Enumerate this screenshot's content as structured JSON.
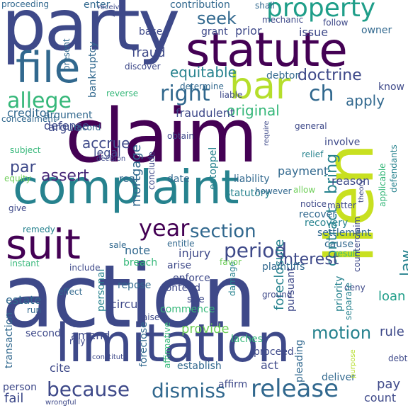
{
  "palette": {
    "dark_purple": "#440154",
    "purple": "#482878",
    "indigo": "#3e4989",
    "blue": "#31688e",
    "teal": "#26828e",
    "green_teal": "#1f9e89",
    "green": "#35b779",
    "light_green": "#6ece58",
    "lime": "#b5de2b",
    "yellow": "#c8e020"
  },
  "words": [
    {
      "text": "action",
      "color": "#3e4989"
    },
    {
      "text": "claim",
      "color": "#440154"
    },
    {
      "text": "lien",
      "color": "#c8e020"
    },
    {
      "text": "party",
      "color": "#3e4989"
    },
    {
      "text": "complaint",
      "color": "#26828e"
    },
    {
      "text": "limitation",
      "color": "#3e4989"
    },
    {
      "text": "statute",
      "color": "#440154"
    },
    {
      "text": "file",
      "color": "#31688e"
    },
    {
      "text": "suit",
      "color": "#440154"
    },
    {
      "text": "bar",
      "color": "#b5de2b"
    },
    {
      "text": "property",
      "color": "#1f9e89"
    },
    {
      "text": "release",
      "color": "#31688e"
    },
    {
      "text": "because",
      "color": "#3e4989"
    },
    {
      "text": "dismiss",
      "color": "#31688e"
    },
    {
      "text": "period",
      "color": "#3e4989"
    },
    {
      "text": "section",
      "color": "#31688e"
    },
    {
      "text": "year",
      "color": "#440154"
    },
    {
      "text": "allege",
      "color": "#35b779"
    },
    {
      "text": "right",
      "color": "#31688e"
    },
    {
      "text": "contract",
      "color": "#26828e"
    },
    {
      "text": "bring",
      "color": "#26828e"
    },
    {
      "text": "assert",
      "color": "#482878"
    },
    {
      "text": "ch",
      "color": "#31688e"
    },
    {
      "text": "seek",
      "color": "#31688e"
    },
    {
      "text": "motion",
      "color": "#26828e"
    },
    {
      "text": "interest",
      "color": "#3e4989"
    },
    {
      "text": "law",
      "color": "#26828e"
    },
    {
      "text": "apply",
      "color": "#31688e"
    },
    {
      "text": "par",
      "color": "#3e4989"
    },
    {
      "text": "doctrine",
      "color": "#3e4989"
    },
    {
      "text": "original",
      "color": "#35b779"
    },
    {
      "text": "equitable",
      "color": "#26828e"
    },
    {
      "text": "fraudulent",
      "color": "#3e4989"
    },
    {
      "text": "defense",
      "color": "#3e4989"
    },
    {
      "text": "argue",
      "color": "#3e4989"
    },
    {
      "text": "accrue",
      "color": "#3e4989"
    },
    {
      "text": "mortgage",
      "color": "#31688e"
    },
    {
      "text": "creditor",
      "color": "#31688e"
    },
    {
      "text": "legal",
      "color": "#3e4989"
    },
    {
      "text": "fraud",
      "color": "#3e4989"
    },
    {
      "text": "issue",
      "color": "#3e4989"
    },
    {
      "text": "prior",
      "color": "#3e4989"
    },
    {
      "text": "grant",
      "color": "#3e4989"
    },
    {
      "text": "base",
      "color": "#3e4989"
    },
    {
      "text": "owner",
      "color": "#31688e"
    },
    {
      "text": "debtor",
      "color": "#31688e"
    },
    {
      "text": "bankruptcy",
      "color": "#31688e"
    },
    {
      "text": "contribution",
      "color": "#31688e"
    },
    {
      "text": "enter",
      "color": "#31688e"
    },
    {
      "text": "proceeding",
      "color": "#31688e"
    },
    {
      "text": "shall",
      "color": "#31688e"
    },
    {
      "text": "payment",
      "color": "#31688e"
    },
    {
      "text": "liability",
      "color": "#31688e"
    },
    {
      "text": "date",
      "color": "#31688e"
    },
    {
      "text": "real",
      "color": "#31688e"
    },
    {
      "text": "estoppel",
      "color": "#26828e"
    },
    {
      "text": "foreclosure",
      "color": "#26828e"
    },
    {
      "text": "statutory",
      "color": "#26828e"
    },
    {
      "text": "recover",
      "color": "#31688e"
    },
    {
      "text": "recovery",
      "color": "#26828e"
    },
    {
      "text": "settlement",
      "color": "#31688e"
    },
    {
      "text": "cause",
      "color": "#31688e"
    },
    {
      "text": "remedy",
      "color": "#26828e"
    },
    {
      "text": "note",
      "color": "#31688e"
    },
    {
      "text": "injury",
      "color": "#3e4989"
    },
    {
      "text": "breach",
      "color": "#35b779"
    },
    {
      "text": "personal",
      "color": "#26828e"
    },
    {
      "text": "sale",
      "color": "#31688e"
    },
    {
      "text": "entitle",
      "color": "#31688e"
    },
    {
      "text": "arise",
      "color": "#3e4989"
    },
    {
      "text": "contend",
      "color": "#3e4989"
    },
    {
      "text": "plaintiffs",
      "color": "#31688e"
    },
    {
      "text": "damage",
      "color": "#26828e"
    },
    {
      "text": "sue",
      "color": "#3e4989"
    },
    {
      "text": "commence",
      "color": "#35b779"
    },
    {
      "text": "provide",
      "color": "#6ece58"
    },
    {
      "text": "circuit",
      "color": "#3e4989"
    },
    {
      "text": "repose",
      "color": "#31688e"
    },
    {
      "text": "estate",
      "color": "#31688e"
    },
    {
      "text": "amend",
      "color": "#3e4989"
    },
    {
      "text": "loan",
      "color": "#1f9e89"
    },
    {
      "text": "rule",
      "color": "#3e4989"
    },
    {
      "text": "pursuant",
      "color": "#3e4989"
    },
    {
      "text": "priority",
      "color": "#26828e"
    },
    {
      "text": "proceed",
      "color": "#3e4989"
    },
    {
      "text": "act",
      "color": "#3e4989"
    },
    {
      "text": "cite",
      "color": "#3e4989"
    },
    {
      "text": "pay",
      "color": "#3e4989"
    },
    {
      "text": "count",
      "color": "#3e4989"
    },
    {
      "text": "person",
      "color": "#3e4989"
    },
    {
      "text": "fail",
      "color": "#3e4989"
    },
    {
      "text": "deliver",
      "color": "#31688e"
    },
    {
      "text": "affirm",
      "color": "#3e4989"
    },
    {
      "text": "establish",
      "color": "#31688e"
    },
    {
      "text": "laches",
      "color": "#35b779"
    },
    {
      "text": "pleading",
      "color": "#31688e"
    },
    {
      "text": "debt",
      "color": "#3e4989"
    },
    {
      "text": "transaction",
      "color": "#31688e"
    },
    {
      "text": "second",
      "color": "#3e4989"
    },
    {
      "text": "run",
      "color": "#31688e"
    },
    {
      "text": "enforce",
      "color": "#3e4989"
    },
    {
      "text": "foreclose",
      "color": "#31688e"
    },
    {
      "text": "raise",
      "color": "#3e4989"
    },
    {
      "text": "allow",
      "color": "#6ece58"
    },
    {
      "text": "reason",
      "color": "#3e4989"
    },
    {
      "text": "know",
      "color": "#3e4989"
    },
    {
      "text": "include",
      "color": "#3e4989"
    },
    {
      "text": "reverse",
      "color": "#35b779"
    },
    {
      "text": "record",
      "color": "#31688e"
    },
    {
      "text": "argument",
      "color": "#31688e"
    },
    {
      "text": "concealment",
      "color": "#31688e"
    },
    {
      "text": "subject",
      "color": "#35b779"
    },
    {
      "text": "equity",
      "color": "#6ece58"
    },
    {
      "text": "give",
      "color": "#3e4989"
    },
    {
      "text": "instant",
      "color": "#35b779"
    },
    {
      "text": "discover",
      "color": "#3e4989"
    },
    {
      "text": "determine",
      "color": "#31688e"
    },
    {
      "text": "mechanic",
      "color": "#3e4989"
    },
    {
      "text": "follow",
      "color": "#3e4989"
    },
    {
      "text": "obtain",
      "color": "#3e4989"
    },
    {
      "text": "general",
      "color": "#3e4989"
    },
    {
      "text": "involve",
      "color": "#3e4989"
    },
    {
      "text": "relief",
      "color": "#26828e"
    },
    {
      "text": "conclude",
      "color": "#3e4989"
    },
    {
      "text": "however",
      "color": "#31688e"
    },
    {
      "text": "matter",
      "color": "#3e4989"
    },
    {
      "text": "notice",
      "color": "#3e4989"
    },
    {
      "text": "result",
      "color": "#35b779"
    },
    {
      "text": "favor",
      "color": "#6ece58"
    },
    {
      "text": "deny",
      "color": "#3e4989"
    },
    {
      "text": "counterclaim",
      "color": "#3e4989"
    },
    {
      "text": "separate",
      "color": "#26828e"
    },
    {
      "text": "ground",
      "color": "#3e4989"
    },
    {
      "text": "effect",
      "color": "#31688e"
    },
    {
      "text": "present",
      "color": "#31688e"
    },
    {
      "text": "receive",
      "color": "#3e4989"
    },
    {
      "text": "theory",
      "color": "#3e4989"
    },
    {
      "text": "applicable",
      "color": "#35b779"
    },
    {
      "text": "defendants",
      "color": "#26828e"
    },
    {
      "text": "liable",
      "color": "#3e4989"
    },
    {
      "text": "require",
      "color": "#3e4989"
    },
    {
      "text": "decision",
      "color": "#3e4989"
    },
    {
      "text": "constitute",
      "color": "#3e4989"
    },
    {
      "text": "rely",
      "color": "#3e4989"
    },
    {
      "text": "affirmative",
      "color": "#35b779"
    },
    {
      "text": "purpose",
      "color": "#b5de2b"
    },
    {
      "text": "wrongful",
      "color": "#3e4989"
    }
  ]
}
